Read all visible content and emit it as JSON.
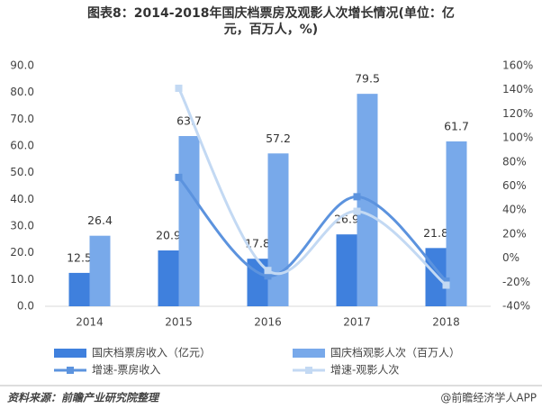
{
  "chart_data": {
    "type": "bar-line",
    "title": "图表8：2014-2018年国庆档票房及观影人次增长情况(单位：亿元，百万人，%)",
    "categories": [
      "2014",
      "2015",
      "2016",
      "2017",
      "2018"
    ],
    "series": [
      {
        "name": "国庆档票房收入（亿元）",
        "type": "bar",
        "color": "#3f80dd",
        "values": [
          12.5,
          20.9,
          17.8,
          26.9,
          21.8
        ]
      },
      {
        "name": "国庆档观影人次（百万人）",
        "type": "bar",
        "color": "#78a9ea",
        "values": [
          26.4,
          63.7,
          57.2,
          79.5,
          61.7
        ]
      },
      {
        "name": "增速-票房收入",
        "type": "line",
        "axis": "y2",
        "color": "#5c93de",
        "values": [
          null,
          67.2,
          -14.8,
          51.1,
          -19.0
        ]
      },
      {
        "name": "增速-观影人次",
        "type": "line",
        "axis": "y2",
        "color": "#c3d9f3",
        "values": [
          null,
          141.3,
          -10.2,
          39.0,
          -22.4
        ]
      }
    ],
    "ylim": [
      0,
      90
    ],
    "yticks": [
      {
        "value": 0,
        "label": "0.0"
      },
      {
        "value": 10,
        "label": "10.0"
      },
      {
        "value": 20,
        "label": "20.0"
      },
      {
        "value": 30,
        "label": "30.0"
      },
      {
        "value": 40,
        "label": "40.0"
      },
      {
        "value": 50,
        "label": "50.0"
      },
      {
        "value": 60,
        "label": "60.0"
      },
      {
        "value": 70,
        "label": "70.0"
      },
      {
        "value": 80,
        "label": "80.0"
      },
      {
        "value": 90,
        "label": "90.0"
      }
    ],
    "y2lim": [
      -40,
      160
    ],
    "y2ticks": [
      {
        "value": -40,
        "label": "-40%"
      },
      {
        "value": -20,
        "label": "-20%"
      },
      {
        "value": 0,
        "label": "0%"
      },
      {
        "value": 20,
        "label": "20%"
      },
      {
        "value": 40,
        "label": "40%"
      },
      {
        "value": 60,
        "label": "60%"
      },
      {
        "value": 80,
        "label": "80%"
      },
      {
        "value": 100,
        "label": "100%"
      },
      {
        "value": 120,
        "label": "120%"
      },
      {
        "value": 140,
        "label": "140%"
      },
      {
        "value": 160,
        "label": "160%"
      }
    ],
    "grid": false,
    "source": "资料来源：前瞻产业研究院整理",
    "credit": "@前瞻经济学人APP"
  }
}
